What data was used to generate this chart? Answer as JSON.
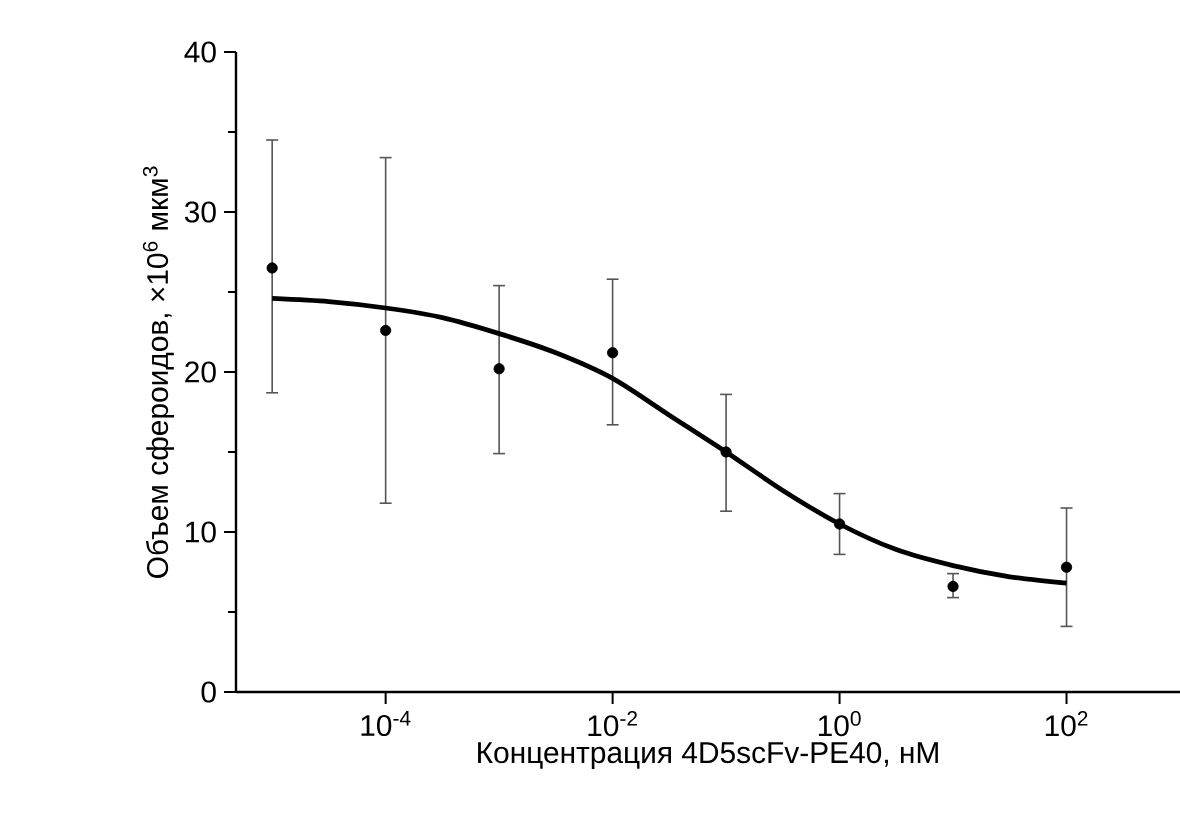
{
  "chart_data": {
    "type": "scatter",
    "xlabel": "Концентрация 4D5scFv-PE40, нМ",
    "ylabel": "Объем сфероидов, ×10$^{6}$ мкм$^{3}$",
    "log": "x",
    "xlim": [
      4.8e-06,
      1000
    ],
    "ylim": [
      0,
      40
    ],
    "xticks": [
      {
        "value": 0.0001,
        "label": "10$^{-4}$"
      },
      {
        "value": 0.01,
        "label": "10$^{-2}$"
      },
      {
        "value": 1,
        "label": "10$^{0}$"
      },
      {
        "value": 100,
        "label": "10$^{2}$"
      }
    ],
    "yticks": [
      0,
      10,
      20,
      30,
      40
    ],
    "series": [
      {
        "color": "#000000",
        "marker": "circle",
        "x": [
          1e-05,
          0.0001,
          0.001,
          0.01,
          0.1,
          1,
          10,
          100
        ],
        "values": [
          26.5,
          22.6,
          20.2,
          21.2,
          15.0,
          10.5,
          6.6,
          7.8
        ],
        "errors": [
          [
            18.7,
            34.5
          ],
          [
            11.8,
            33.4
          ],
          [
            14.9,
            25.4
          ],
          [
            16.7,
            25.8
          ],
          [
            11.3,
            18.6
          ],
          [
            8.6,
            12.4
          ],
          [
            5.9,
            7.4
          ],
          [
            4.1,
            11.5
          ]
        ]
      },
      {
        "type": "line",
        "color": "#000000",
        "marker": "none",
        "line_style": "solid",
        "x": [
          1e-05,
          3.16e-05,
          0.0001,
          0.000316,
          0.001,
          0.00316,
          0.01,
          0.0316,
          0.1,
          0.316,
          1,
          3.16,
          10,
          31.6,
          100
        ],
        "values": [
          24.6,
          24.4,
          24.0,
          23.4,
          22.4,
          21.2,
          19.6,
          17.3,
          15.0,
          12.6,
          10.5,
          8.9,
          7.9,
          7.2,
          6.8
        ]
      }
    ]
  }
}
